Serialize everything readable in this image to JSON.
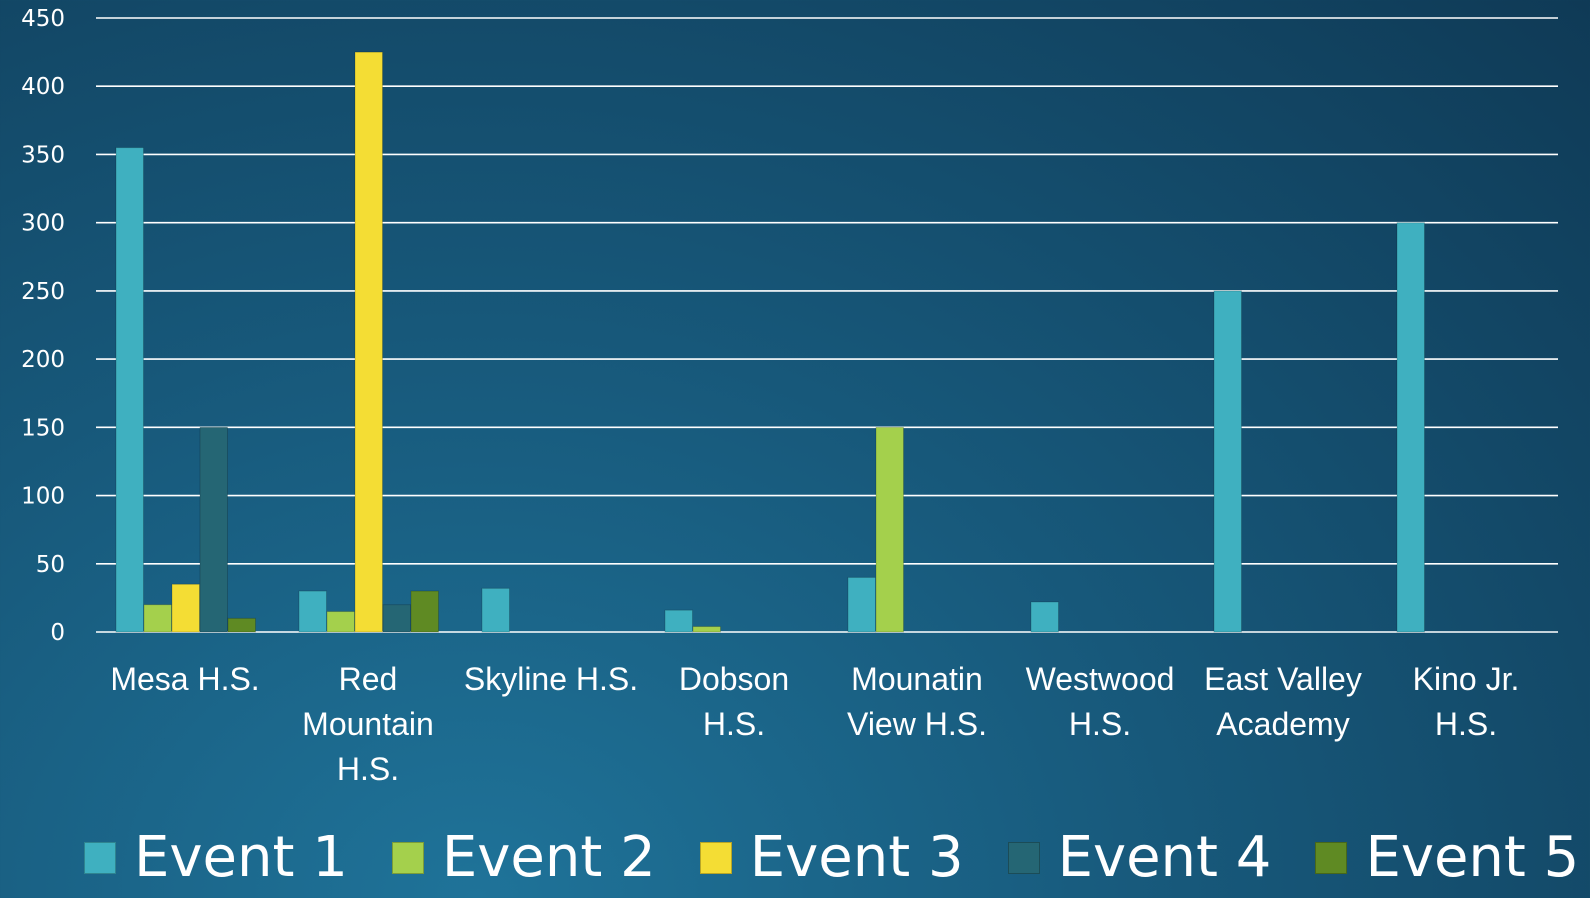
{
  "chart_data": {
    "type": "bar",
    "categories": [
      "Mesa H.S.",
      "Red Mountain H.S.",
      "Skyline H.S.",
      "Dobson H.S.",
      "Mounatin View H.S.",
      "Westwood H.S.",
      "East Valley Academy",
      "Kino Jr. H.S."
    ],
    "category_lines": [
      [
        "Mesa H.S."
      ],
      [
        "Red",
        "Mountain",
        "H.S."
      ],
      [
        "Skyline H.S."
      ],
      [
        "Dobson",
        "H.S."
      ],
      [
        "Mounatin",
        "View H.S."
      ],
      [
        "Westwood",
        "H.S."
      ],
      [
        "East Valley",
        "Academy"
      ],
      [
        "Kino Jr.",
        "H.S."
      ]
    ],
    "series": [
      {
        "name": "Event 1",
        "color": "#3fb0c0",
        "values": [
          355,
          30,
          32,
          16,
          40,
          22,
          250,
          300
        ]
      },
      {
        "name": "Event 2",
        "color": "#a4d04c",
        "values": [
          20,
          15,
          null,
          4,
          150,
          null,
          null,
          null
        ]
      },
      {
        "name": "Event 3",
        "color": "#f4dd34",
        "values": [
          35,
          425,
          null,
          null,
          null,
          null,
          null,
          null
        ]
      },
      {
        "name": "Event 4",
        "color": "#256674",
        "values": [
          150,
          20,
          null,
          null,
          null,
          null,
          null,
          null
        ]
      },
      {
        "name": "Event 5",
        "color": "#5f8a23",
        "values": [
          10,
          30,
          null,
          null,
          null,
          null,
          null,
          null
        ]
      }
    ],
    "yticks": [
      0,
      50,
      100,
      150,
      200,
      250,
      300,
      350,
      400,
      450
    ],
    "ylim": [
      0,
      450
    ],
    "grid": true,
    "legend_position": "bottom",
    "title": "",
    "xlabel": "",
    "ylabel": ""
  }
}
